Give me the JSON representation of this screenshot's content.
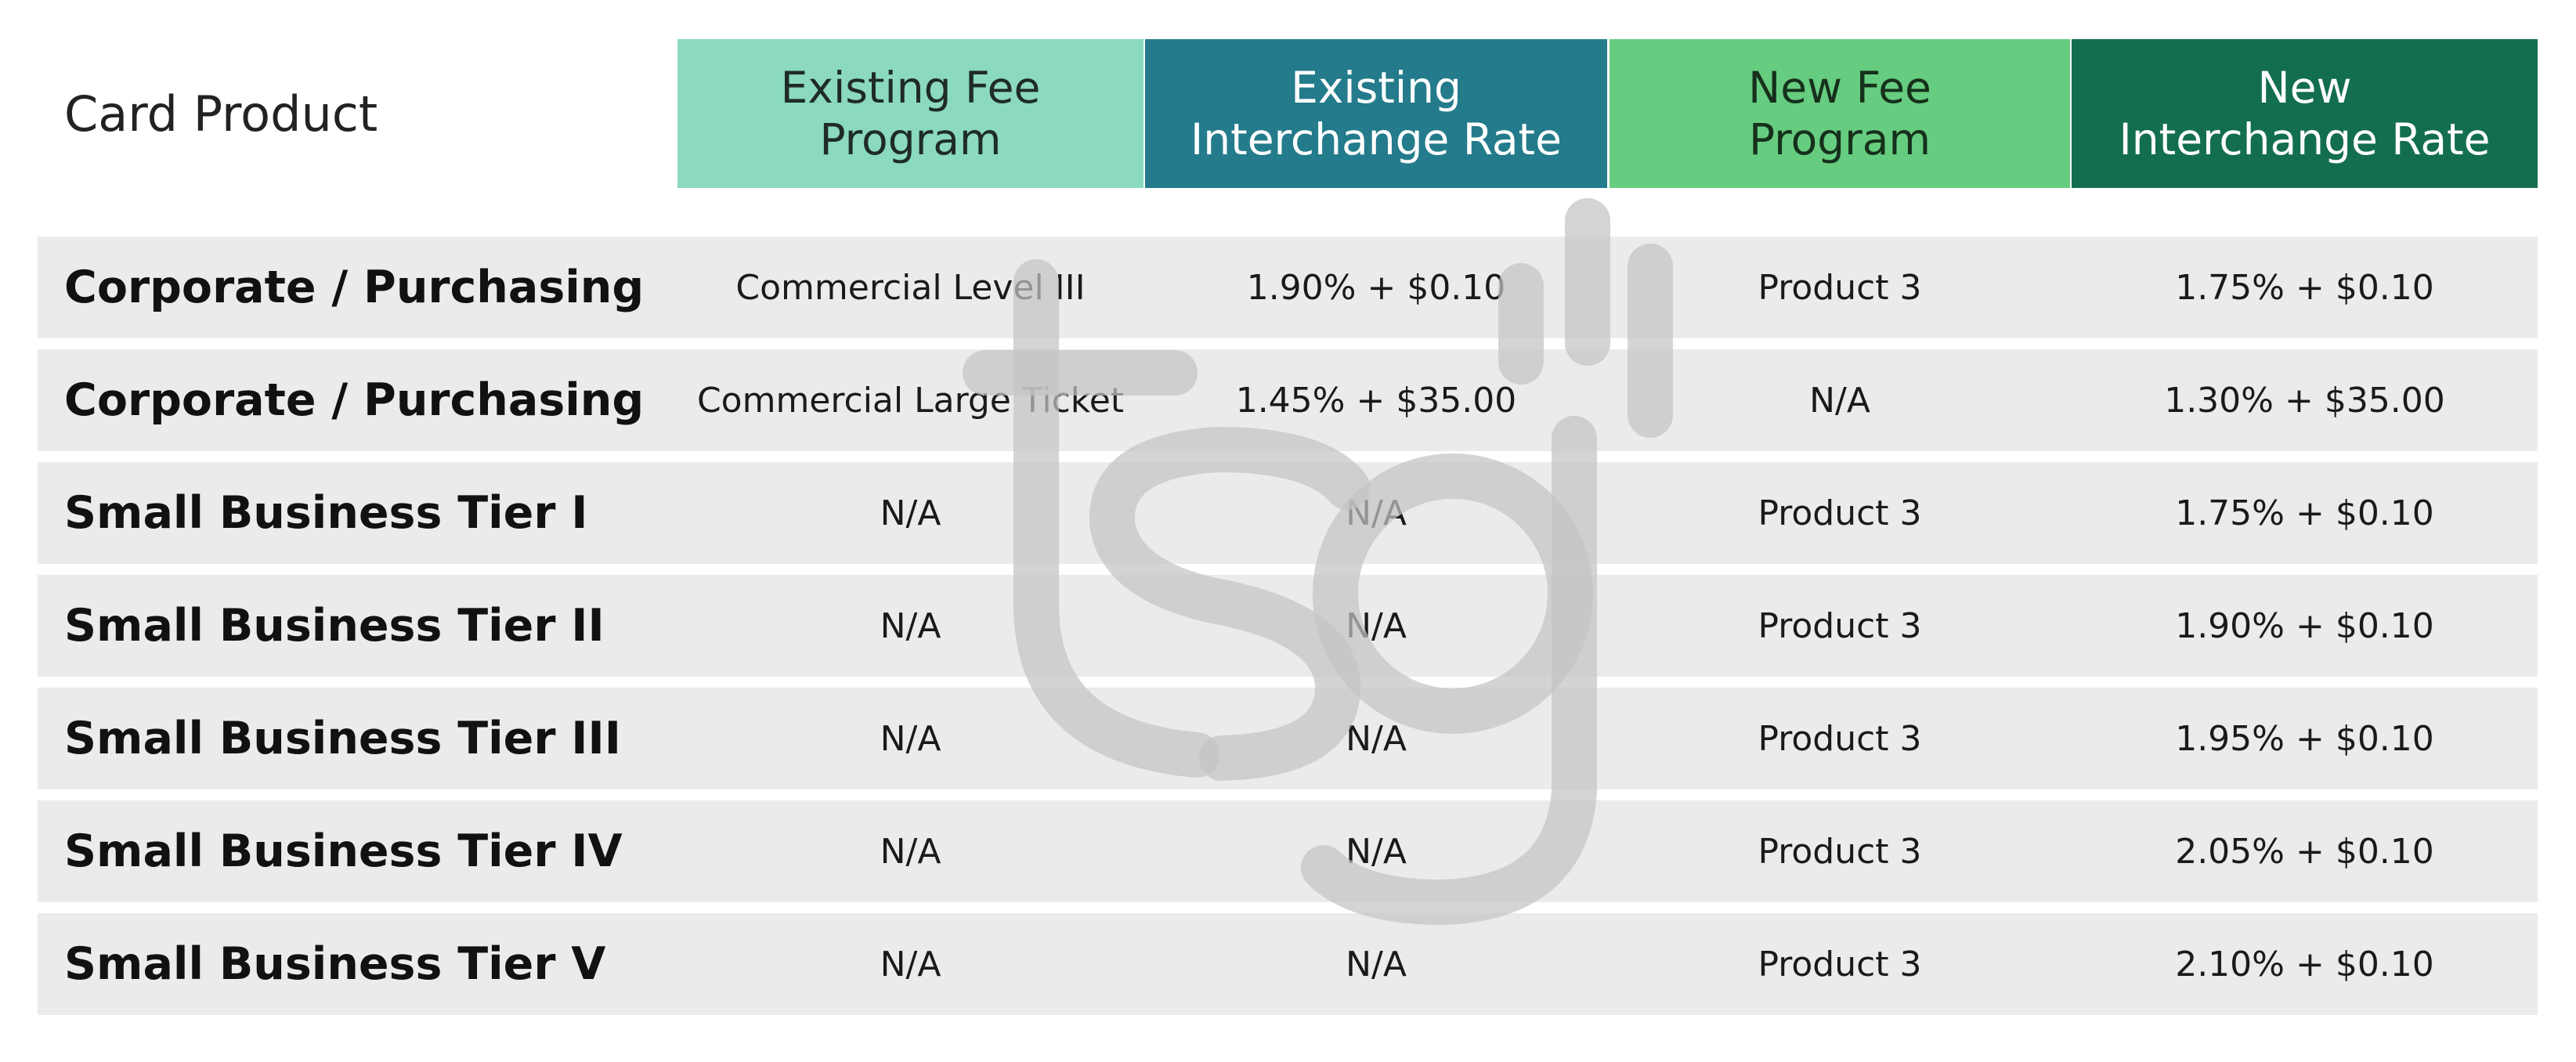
{
  "chart_data": {
    "type": "table",
    "row_header": "Card Product",
    "columns": [
      {
        "label_lines": [
          "Existing Fee",
          "Program"
        ],
        "color": "#8bd9bf",
        "text_color": "#1e2b28"
      },
      {
        "label_lines": [
          "Existing",
          "Interchange Rate"
        ],
        "color": "#237b8b",
        "text_color": "#ffffff"
      },
      {
        "label_lines": [
          "New Fee",
          "Program"
        ],
        "color": "#66cc7f",
        "text_color": "#16301c"
      },
      {
        "label_lines": [
          "New",
          "Interchange Rate"
        ],
        "color": "#136e4e",
        "text_color": "#ffffff"
      }
    ],
    "rows": [
      {
        "label": "Corporate / Purchasing",
        "cells": [
          "Commercial Level III",
          "1.90% + $0.10",
          "Product 3",
          "1.75% + $0.10"
        ]
      },
      {
        "label": "Corporate / Purchasing",
        "cells": [
          "Commercial Large Ticket",
          "1.45% + $35.00",
          "N/A",
          "1.30% + $35.00"
        ]
      },
      {
        "label": "Small Business Tier I",
        "cells": [
          "N/A",
          "N/A",
          "Product 3",
          "1.75% + $0.10"
        ]
      },
      {
        "label": "Small Business Tier II",
        "cells": [
          "N/A",
          "N/A",
          "Product 3",
          "1.90% + $0.10"
        ]
      },
      {
        "label": "Small Business Tier III",
        "cells": [
          "N/A",
          "N/A",
          "Product 3",
          "1.95% + $0.10"
        ]
      },
      {
        "label": "Small Business Tier IV",
        "cells": [
          "N/A",
          "N/A",
          "Product 3",
          "2.05% + $0.10"
        ]
      },
      {
        "label": "Small Business Tier V",
        "cells": [
          "N/A",
          "N/A",
          "Product 3",
          "2.10% + $0.10"
        ]
      }
    ],
    "watermark": "tsg",
    "watermark_color": "#cccccc",
    "row_background": "#e8e8e8"
  }
}
